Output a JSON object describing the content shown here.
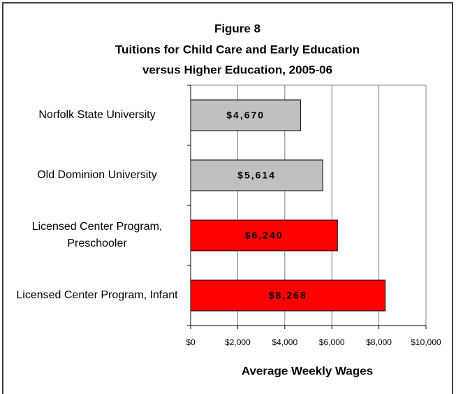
{
  "chart_data": {
    "type": "bar",
    "orientation": "horizontal",
    "title": [
      "Figure 8",
      "Tuitions for Child Care and Early Education",
      "versus Higher Education, 2005-06"
    ],
    "categories": [
      "Norfolk State University",
      "Old Dominion University",
      "Licensed Center Program, Preschooler",
      "Licensed Center Program, Infant"
    ],
    "values": [
      4670,
      5614,
      6240,
      8268
    ],
    "value_labels": [
      "$4,670",
      "$5,614",
      "$6,240",
      "$8,268"
    ],
    "colors": [
      "#c0c0c0",
      "#c0c0c0",
      "#ff0000",
      "#ff0000"
    ],
    "xlim": [
      0,
      10000
    ],
    "xticks": [
      {
        "value": 0,
        "label": "$0"
      },
      {
        "value": 2000,
        "label": "$2,000"
      },
      {
        "value": 4000,
        "label": "$4,000"
      },
      {
        "value": 6000,
        "label": "$6,000"
      },
      {
        "value": 8000,
        "label": "$8,000"
      },
      {
        "value": 10000,
        "label": "$10,000"
      }
    ],
    "xlabel": "Average Weekly Wages",
    "grid": true
  }
}
